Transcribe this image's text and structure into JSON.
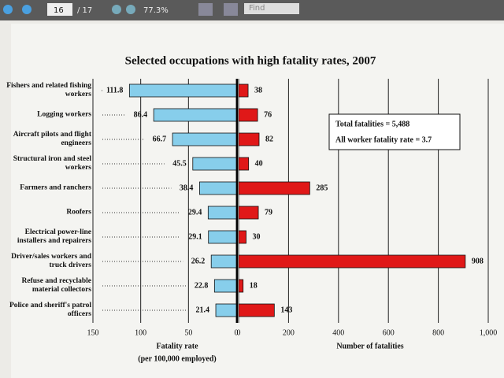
{
  "toolbar": {
    "page": "16",
    "pages": "/ 17",
    "zoom": "77.3%",
    "search": "Find"
  },
  "chart_data": [
    {
      "type": "barh",
      "title": "Selected occupations with high fatality rates, 2007",
      "categories": [
        "Fishers and related fishing workers",
        "Logging workers",
        "Aircraft pilots and flight engineers",
        "Structural iron and steel workers",
        "Farmers and ranchers",
        "Roofers",
        "Electrical power-line installers and repairers",
        "Driver/sales workers and truck drivers",
        "Refuse and recyclable material collectors",
        "Police and sheriff's patrol officers"
      ],
      "values": [
        111.8,
        86.4,
        66.7,
        45.5,
        38.4,
        29.4,
        29.1,
        26.2,
        22.8,
        21.4
      ],
      "color": "#87ceeb",
      "xlim": [
        150,
        0
      ],
      "xticks": [
        150,
        100,
        50,
        0
      ],
      "xlabel": [
        "Fatality rate",
        "(per 100,000 employed)"
      ],
      "grid": true
    },
    {
      "type": "barh",
      "values": [
        38,
        76,
        82,
        40,
        285,
        79,
        30,
        908,
        18,
        143
      ],
      "color": "#e01818",
      "xlim": [
        0,
        1000
      ],
      "xticks": [
        0,
        200,
        400,
        600,
        800,
        {
          "value": 1000,
          "label": "1,000"
        }
      ],
      "xlabel": [
        "Number of fatalities"
      ],
      "grid": true,
      "annotations": [
        "Total fatalities = 5,488",
        "All worker fatality rate = 3.7"
      ]
    }
  ]
}
